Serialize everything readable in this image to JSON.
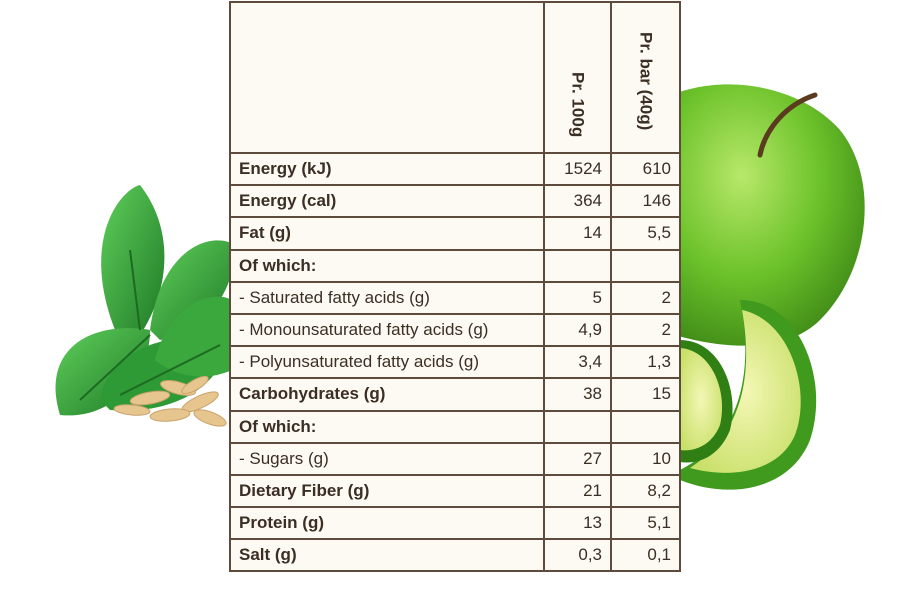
{
  "table": {
    "columns": [
      "",
      "Pr. 100g",
      "Pr. bar (40g)"
    ],
    "rows": [
      {
        "name": "Energy (kJ)",
        "per100": "1524",
        "perBar": "610",
        "bold": true
      },
      {
        "name": "Energy (cal)",
        "per100": "364",
        "perBar": "146",
        "bold": true
      },
      {
        "name": "Fat (g)",
        "per100": "14",
        "perBar": "5,5",
        "bold": true
      },
      {
        "name": "Of which:",
        "per100": "",
        "perBar": "",
        "bold": true
      },
      {
        "name": "- Saturated fatty acids (g)",
        "per100": "5",
        "perBar": "2",
        "bold": false
      },
      {
        "name": "- Monounsaturated fatty acids (g)",
        "per100": "4,9",
        "perBar": "2",
        "bold": false
      },
      {
        "name": "- Polyunsaturated fatty acids (g)",
        "per100": "3,4",
        "perBar": "1,3",
        "bold": false
      },
      {
        "name": "Carbohydrates (g)",
        "per100": "38",
        "perBar": "15",
        "bold": true
      },
      {
        "name": "Of which:",
        "per100": "",
        "perBar": "",
        "bold": true
      },
      {
        "name": "- Sugars (g)",
        "per100": "27",
        "perBar": "10",
        "bold": false
      },
      {
        "name": "Dietary Fiber (g)",
        "per100": "21",
        "perBar": "8,2",
        "bold": true
      },
      {
        "name": "Protein (g)",
        "per100": "13",
        "perBar": "5,1",
        "bold": true
      },
      {
        "name": "Salt (g)",
        "per100": "0,3",
        "perBar": "0,1",
        "bold": true
      }
    ]
  },
  "decorations": {
    "left": "mint-leaves-and-oat-grains",
    "right": "green-apple-and-lime-slices",
    "colors": {
      "table_background": "#fdfaf3",
      "table_border": "#5e4b3c",
      "text": "#3b2e25",
      "mint": "#2e9a35",
      "apple": "#6cc22a",
      "lime": "#3f9a1e"
    }
  }
}
